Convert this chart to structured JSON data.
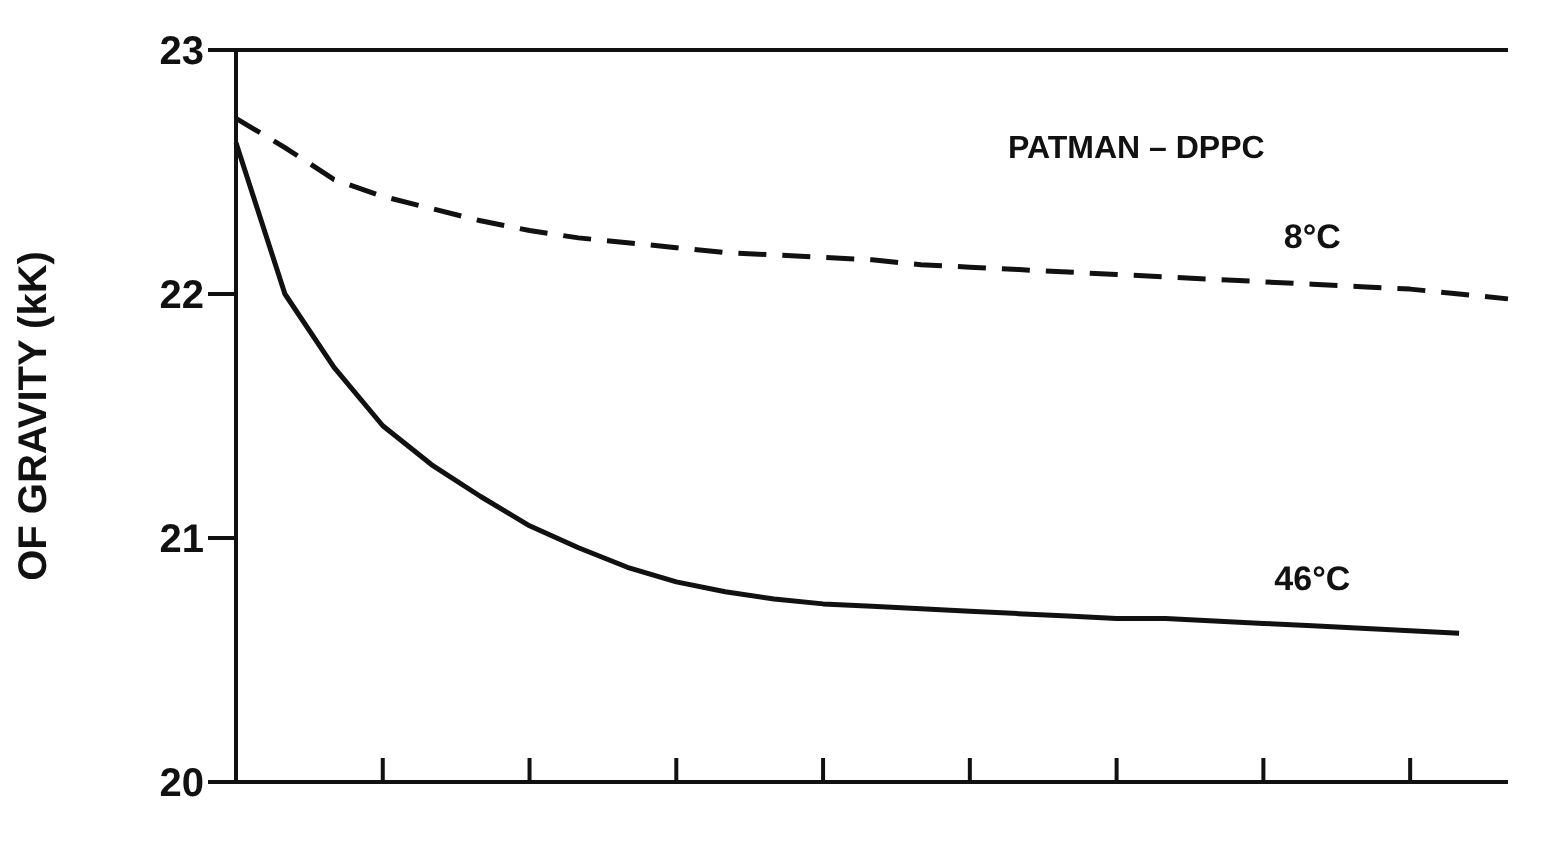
{
  "chart_data": {
    "type": "line",
    "ylabel": "OF GRAVITY (kK)",
    "annotations": [
      "PATMAN – DPPC"
    ],
    "categories": [
      null,
      null,
      null,
      null,
      null,
      null,
      null,
      null,
      null,
      null,
      null,
      null,
      null,
      null,
      null,
      null,
      null,
      null,
      null,
      null,
      null,
      null,
      null,
      null,
      null,
      null,
      null
    ],
    "series": [
      {
        "name": "8°C",
        "color": "#111111",
        "line_style": "dashed",
        "values": [
          22.72,
          22.6,
          22.47,
          22.4,
          22.35,
          22.3,
          22.26,
          22.23,
          22.21,
          22.19,
          22.17,
          22.16,
          22.15,
          22.14,
          22.12,
          22.11,
          22.1,
          22.09,
          22.08,
          22.07,
          22.06,
          22.05,
          22.04,
          22.03,
          22.02,
          22.0,
          21.98
        ]
      },
      {
        "name": "46°C",
        "color": "#111111",
        "line_style": "solid",
        "values": [
          22.62,
          22.0,
          21.7,
          21.46,
          21.3,
          21.17,
          21.05,
          20.96,
          20.88,
          20.82,
          20.78,
          20.75,
          20.73,
          20.72,
          20.71,
          20.7,
          20.69,
          20.68,
          20.67,
          20.67,
          20.66,
          20.65,
          20.64,
          20.63,
          20.62,
          20.61,
          null
        ]
      }
    ],
    "ylim": [
      20,
      23
    ],
    "yticks": [
      20,
      21,
      22,
      23
    ],
    "tick_labels": "y",
    "legend": false,
    "marker": "none"
  }
}
